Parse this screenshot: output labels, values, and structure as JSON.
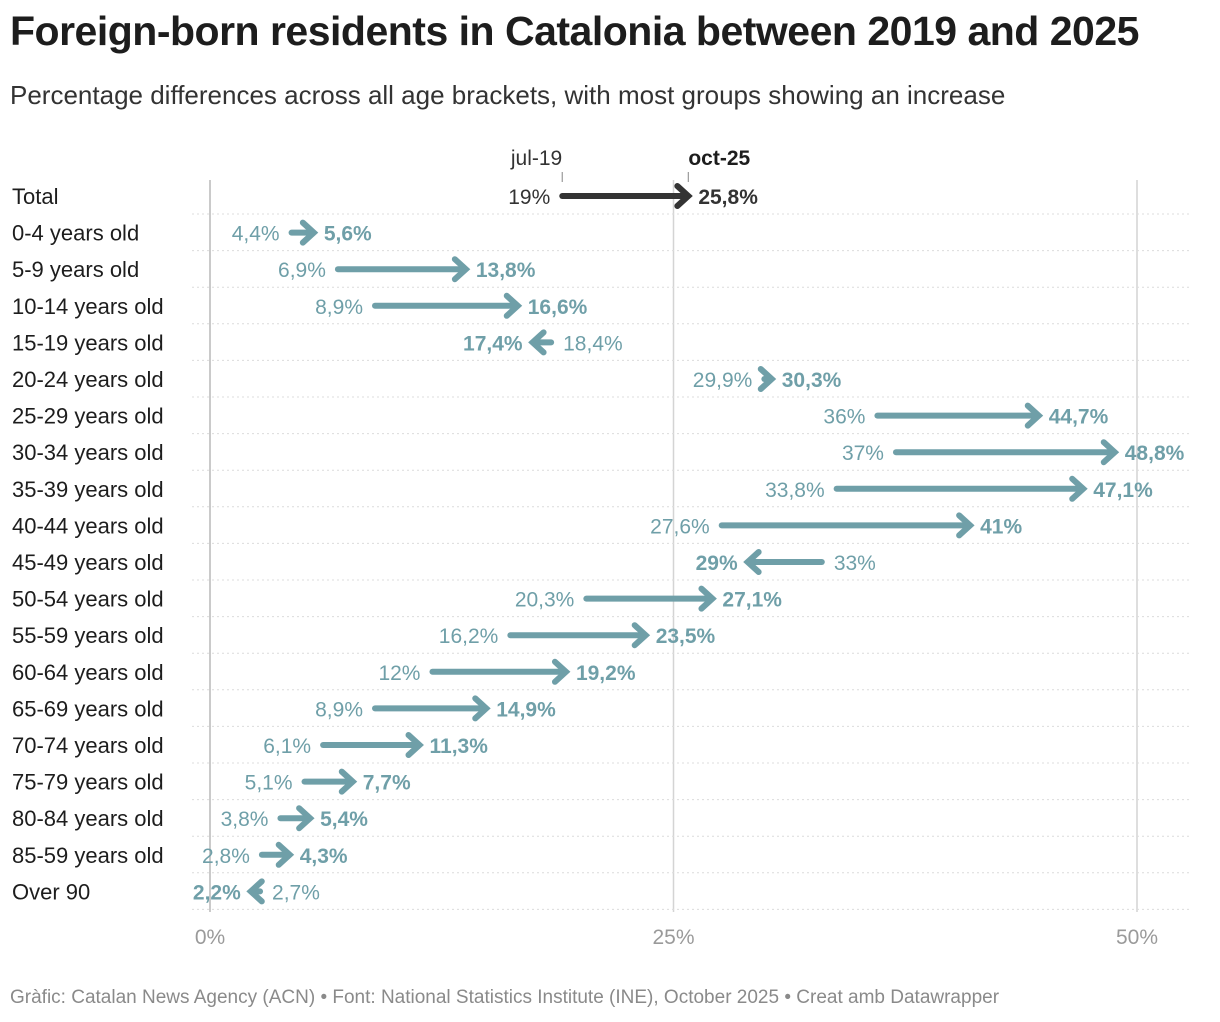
{
  "title": "Foreign-born residents in Catalonia between 2019 and 2025",
  "subtitle": "Percentage differences across all age brackets, with most groups showing an increase",
  "footer": "Gràfic: Catalan News Agency (ACN) • Font: National Statistics Institute (INE), October 2025 • Creat amb Datawrapper",
  "colors": {
    "total": "#333333",
    "series": "#6f9fa8",
    "grid": "#d4d4d4"
  },
  "chart_data": {
    "type": "arrow",
    "legend": {
      "from": "jul-19",
      "to": "oct-25"
    },
    "xlim": [
      0,
      50
    ],
    "x_ticks": [
      {
        "value": 0,
        "label": "0%"
      },
      {
        "value": 25,
        "label": "25%"
      },
      {
        "value": 50,
        "label": "50%"
      }
    ],
    "rows": [
      {
        "label": "Total",
        "from": 19,
        "to": 25.8,
        "from_label": "19%",
        "to_label": "25,8%",
        "total": true
      },
      {
        "label": "0-4 years old",
        "from": 4.4,
        "to": 5.6,
        "from_label": "4,4%",
        "to_label": "5,6%"
      },
      {
        "label": "5-9 years old",
        "from": 6.9,
        "to": 13.8,
        "from_label": "6,9%",
        "to_label": "13,8%"
      },
      {
        "label": "10-14 years old",
        "from": 8.9,
        "to": 16.6,
        "from_label": "8,9%",
        "to_label": "16,6%"
      },
      {
        "label": "15-19 years old",
        "from": 18.4,
        "to": 17.4,
        "from_label": "18,4%",
        "to_label": "17,4%"
      },
      {
        "label": "20-24 years old",
        "from": 29.9,
        "to": 30.3,
        "from_label": "29,9%",
        "to_label": "30,3%"
      },
      {
        "label": "25-29 years old",
        "from": 36,
        "to": 44.7,
        "from_label": "36%",
        "to_label": "44,7%"
      },
      {
        "label": "30-34 years old",
        "from": 37,
        "to": 48.8,
        "from_label": "37%",
        "to_label": "48,8%"
      },
      {
        "label": "35-39 years old",
        "from": 33.8,
        "to": 47.1,
        "from_label": "33,8%",
        "to_label": "47,1%"
      },
      {
        "label": "40-44 years old",
        "from": 27.6,
        "to": 41,
        "from_label": "27,6%",
        "to_label": "41%"
      },
      {
        "label": "45-49 years old",
        "from": 33,
        "to": 29,
        "from_label": "33%",
        "to_label": "29%"
      },
      {
        "label": "50-54 years old",
        "from": 20.3,
        "to": 27.1,
        "from_label": "20,3%",
        "to_label": "27,1%"
      },
      {
        "label": "55-59 years old",
        "from": 16.2,
        "to": 23.5,
        "from_label": "16,2%",
        "to_label": "23,5%"
      },
      {
        "label": "60-64 years old",
        "from": 12,
        "to": 19.2,
        "from_label": "12%",
        "to_label": "19,2%"
      },
      {
        "label": "65-69 years old",
        "from": 8.9,
        "to": 14.9,
        "from_label": "8,9%",
        "to_label": "14,9%"
      },
      {
        "label": "70-74 years old",
        "from": 6.1,
        "to": 11.3,
        "from_label": "6,1%",
        "to_label": "11,3%"
      },
      {
        "label": "75-79 years old",
        "from": 5.1,
        "to": 7.7,
        "from_label": "5,1%",
        "to_label": "7,7%"
      },
      {
        "label": "80-84 years old",
        "from": 3.8,
        "to": 5.4,
        "from_label": "3,8%",
        "to_label": "5,4%"
      },
      {
        "label": "85-59 years old",
        "from": 2.8,
        "to": 4.3,
        "from_label": "2,8%",
        "to_label": "4,3%"
      },
      {
        "label": "Over 90",
        "from": 2.7,
        "to": 2.2,
        "from_label": "2,7%",
        "to_label": "2,2%"
      }
    ]
  }
}
